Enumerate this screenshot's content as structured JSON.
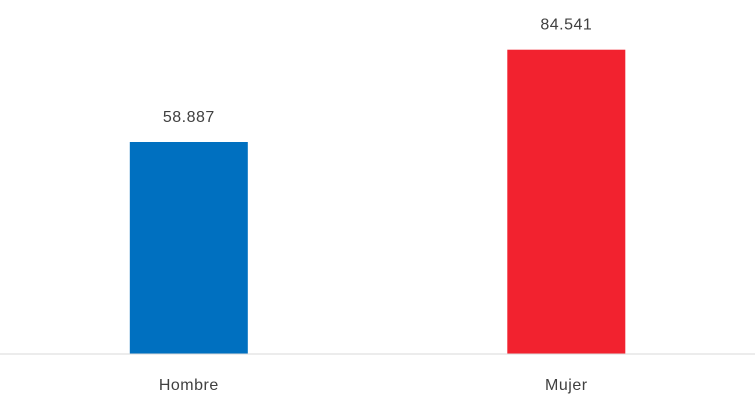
{
  "chart_data": {
    "type": "bar",
    "title": "",
    "xlabel": "",
    "ylabel": "",
    "categories": [
      "Hombre",
      "Mujer"
    ],
    "values": [
      58887,
      84541
    ],
    "value_labels": [
      "58.887",
      "84.541"
    ],
    "colors": [
      "#0070c0",
      "#f2222f"
    ],
    "ylim": [
      0,
      90000
    ],
    "grid": false,
    "legend": "none",
    "axis_color": "#d9d9d9",
    "text_color": "#404040"
  }
}
